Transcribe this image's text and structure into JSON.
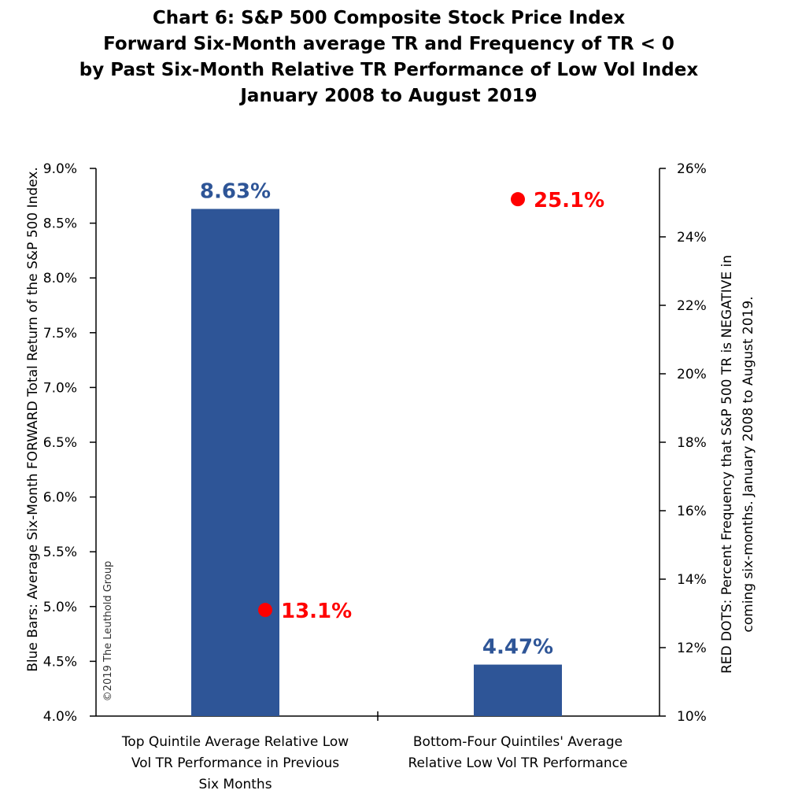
{
  "chart_data": {
    "type": "bar",
    "title_lines": [
      "Chart 6: S&P 500 Composite Stock Price Index",
      "Forward Six-Month average TR and Frequency of TR < 0",
      "by Past Six-Month Relative TR Performance of Low Vol Index",
      "January 2008 to August 2019"
    ],
    "categories": [
      [
        "Top Quintile Average Relative Low",
        "Vol TR Performance in Previous",
        "Six Months"
      ],
      [
        "Bottom-Four Quintiles' Average",
        "Relative Low Vol TR Performance"
      ]
    ],
    "series": [
      {
        "type": "bar",
        "axis": "left",
        "values": [
          8.63,
          4.47
        ],
        "labels": [
          "8.63%",
          "4.47%"
        ]
      },
      {
        "type": "dot",
        "axis": "right",
        "values": [
          13.1,
          25.1
        ],
        "labels": [
          "13.1%",
          "25.1%"
        ]
      }
    ],
    "left_axis": {
      "ylim": [
        4.0,
        9.0
      ],
      "ticks": [
        "4.0%",
        "4.5%",
        "5.0%",
        "5.5%",
        "6.0%",
        "6.5%",
        "7.0%",
        "7.5%",
        "8.0%",
        "8.5%",
        "9.0%"
      ],
      "label": "Blue Bars: Average  Six-Month  FORWARD Total Return of the S&P 500 Index."
    },
    "right_axis": {
      "ylim": [
        10,
        26
      ],
      "ticks": [
        "10%",
        "12%",
        "14%",
        "16%",
        "18%",
        "20%",
        "22%",
        "24%",
        "26%"
      ],
      "label_lines": [
        "RED DOTS: Percent Frequency that S&P 500 TR is NEGATIVE in",
        "coming six-months. January 2008 to August 2019."
      ]
    },
    "grid": false,
    "legend": "none",
    "watermark": "©2019 The Leuthold Group",
    "colors": {
      "bar": "#2E5597",
      "bar_label": "#2E5597",
      "dot": "#FF0000",
      "dot_label": "#FF0000"
    }
  }
}
